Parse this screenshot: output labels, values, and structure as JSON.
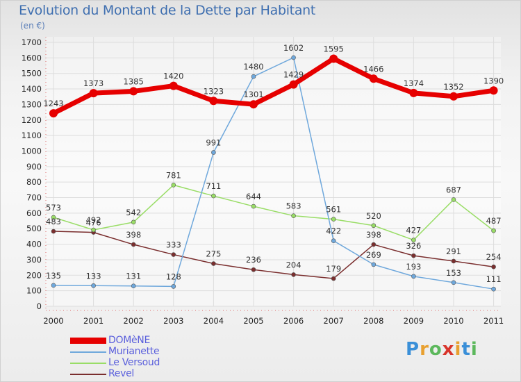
{
  "header": {
    "title": "Evolution du Montant de la Dette par Habitant",
    "subtitle": "(en €)"
  },
  "logo": {
    "text": "Proxiti",
    "letter_colors": [
      "#3a8fd8",
      "#e8a030",
      "#5cb85c",
      "#d8342a",
      "#e8a030",
      "#3a8fd8",
      "#5cb85c"
    ]
  },
  "chart_data": {
    "type": "line",
    "title": "Evolution du Montant de la Dette par Habitant",
    "subtitle": "(en €)",
    "xlabel": "",
    "ylabel": "",
    "x": [
      "2000",
      "2001",
      "2002",
      "2003",
      "2004",
      "2005",
      "2006",
      "2007",
      "2008",
      "2009",
      "2010",
      "2011"
    ],
    "ylim": [
      0,
      1700
    ],
    "y_ticks": [
      0,
      100,
      200,
      300,
      400,
      500,
      600,
      700,
      800,
      900,
      1000,
      1100,
      1200,
      1300,
      1400,
      1500,
      1600,
      1700
    ],
    "grid": true,
    "legend_position": "bottom-left",
    "series": [
      {
        "name": "DOMèNE",
        "color": "#e60000",
        "width": "thick",
        "values": [
          1243,
          1373,
          1385,
          1420,
          1323,
          1301,
          1429,
          1595,
          1466,
          1374,
          1352,
          1390
        ]
      },
      {
        "name": "Murianette",
        "color": "#6fa8dc",
        "width": "thin",
        "values": [
          135,
          133,
          131,
          128,
          991,
          1480,
          1602,
          422,
          269,
          193,
          153,
          111
        ]
      },
      {
        "name": "Le Versoud",
        "color": "#99dd66",
        "width": "thin",
        "values": [
          573,
          492,
          542,
          781,
          711,
          644,
          583,
          561,
          520,
          427,
          687,
          487
        ]
      },
      {
        "name": "Revel",
        "color": "#7a2e2e",
        "width": "thin",
        "values": [
          483,
          476,
          398,
          333,
          275,
          236,
          204,
          179,
          398,
          326,
          291,
          254
        ]
      }
    ]
  }
}
